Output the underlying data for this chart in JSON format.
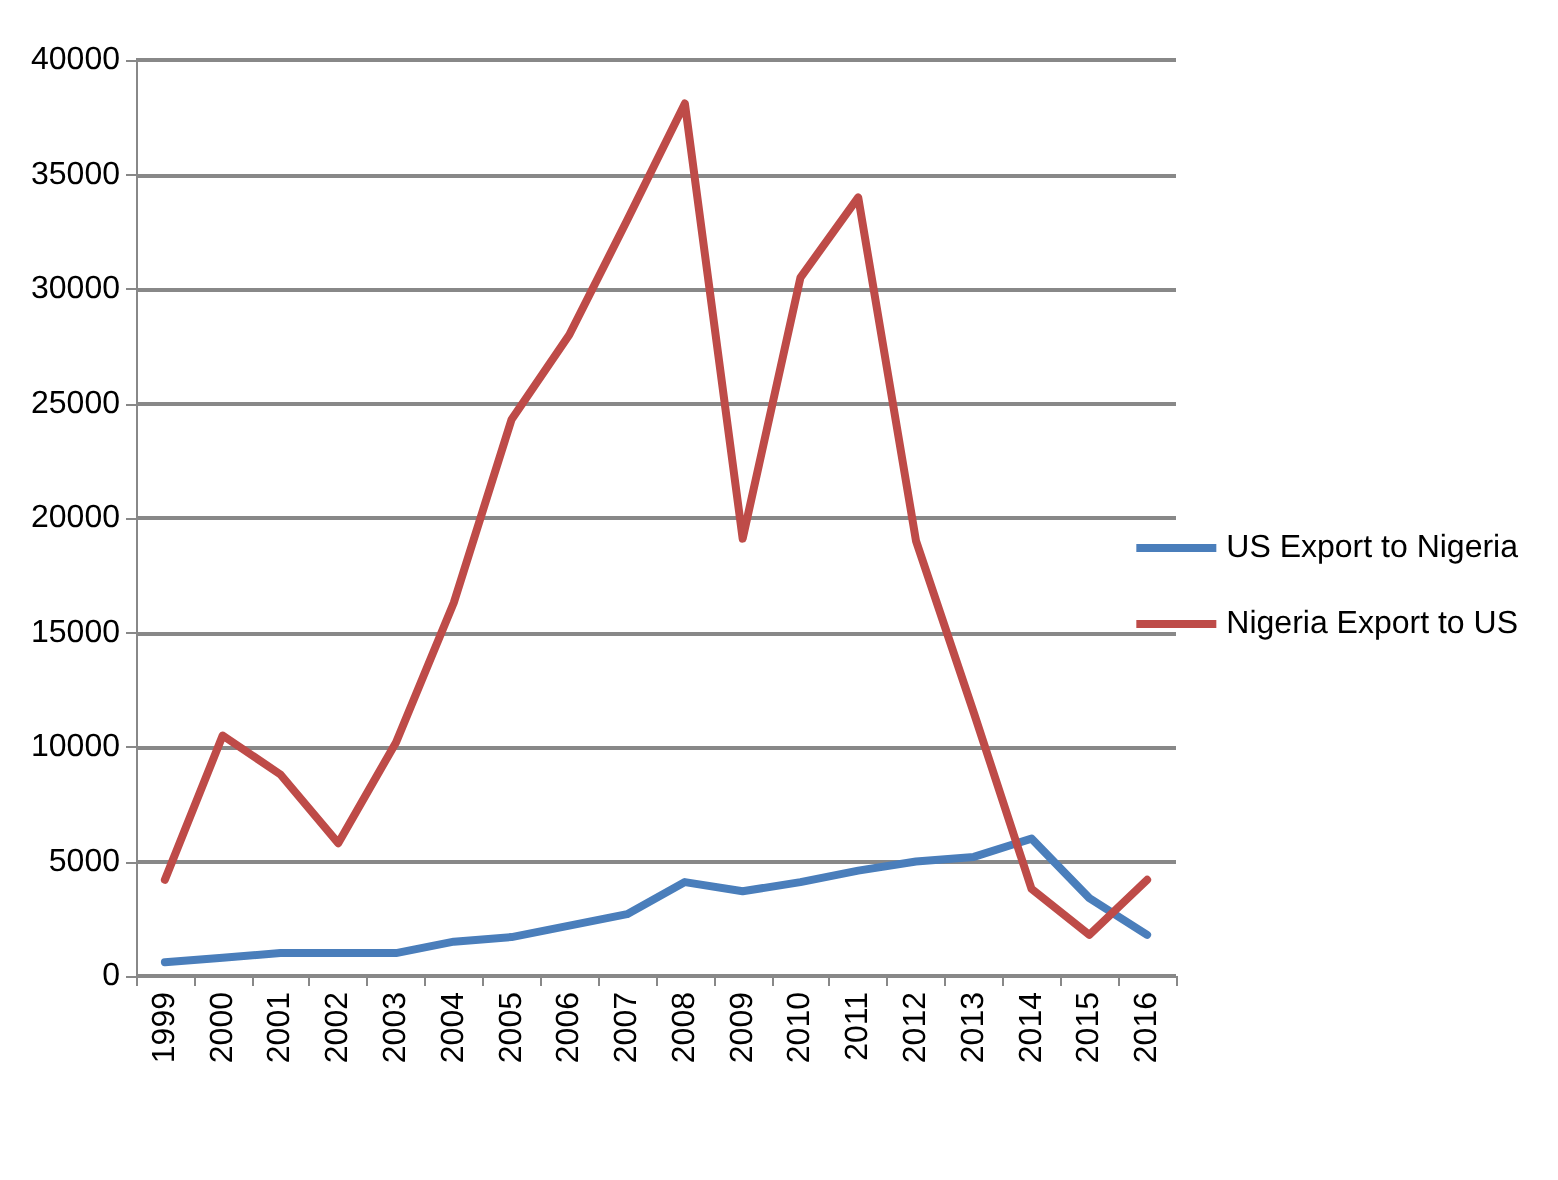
{
  "chart_data": {
    "type": "line",
    "categories": [
      "1999",
      "2000",
      "2001",
      "2002",
      "2003",
      "2004",
      "2005",
      "2006",
      "2007",
      "2008",
      "2009",
      "2010",
      "2011",
      "2012",
      "2013",
      "2014",
      "2015",
      "2016"
    ],
    "series": [
      {
        "name": "US Export to Nigeria",
        "color": "#4a7ebb",
        "values": [
          600,
          800,
          1000,
          1000,
          1000,
          1500,
          1700,
          2200,
          2700,
          4100,
          3700,
          4100,
          4600,
          5000,
          5200,
          6000,
          3400,
          1800
        ]
      },
      {
        "name": "Nigeria Export to US",
        "color": "#be4b48",
        "values": [
          4200,
          10500,
          8800,
          5800,
          10200,
          16300,
          24300,
          28000,
          33000,
          38100,
          19100,
          30500,
          34000,
          19000,
          11500,
          3800,
          1800,
          4200
        ]
      }
    ],
    "ylim": [
      0,
      40000
    ],
    "yticks": [
      0,
      5000,
      10000,
      15000,
      20000,
      25000,
      30000,
      35000,
      40000
    ],
    "grid": "y",
    "legend": "right",
    "marker": "none",
    "line_style": "solid"
  }
}
